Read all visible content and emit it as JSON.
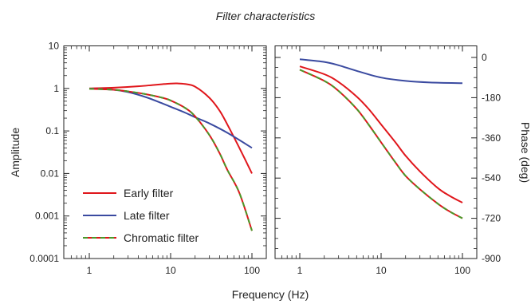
{
  "colors": {
    "early": "#e0161b",
    "late": "#3a4aa0",
    "chromatic_base": "#e0161b",
    "chromatic_dash": "#4a9a2a"
  },
  "chart_data": {
    "title": "Filter characteristics",
    "xlabel": "Frequency (Hz)",
    "panels": [
      {
        "id": "amplitude",
        "type": "line",
        "ylabel": "Amplitude",
        "xscale": "log",
        "yscale": "log",
        "xlim": [
          1,
          100
        ],
        "ylim": [
          0.0001,
          10
        ],
        "xticks": [
          "1",
          "10",
          "100"
        ],
        "yticks": [
          "0.0001",
          "0.001",
          "0.01",
          "0.1",
          "1",
          "10"
        ],
        "legend": "bottom-left",
        "series": [
          {
            "name": "Early filter",
            "color": "early",
            "x": [
              1,
              2,
              4,
              6,
              8,
              10,
              12,
              15,
              20,
              30,
              40,
              50,
              70,
              100
            ],
            "y": [
              1.0,
              1.04,
              1.12,
              1.2,
              1.26,
              1.3,
              1.31,
              1.27,
              1.1,
              0.6,
              0.3,
              0.14,
              0.04,
              0.01
            ]
          },
          {
            "name": "Late filter",
            "color": "late",
            "x": [
              1,
              2,
              3,
              5,
              8,
              10,
              15,
              20,
              30,
              50,
              100
            ],
            "y": [
              0.99,
              0.93,
              0.82,
              0.62,
              0.44,
              0.37,
              0.27,
              0.21,
              0.15,
              0.09,
              0.04
            ]
          },
          {
            "name": "Chromatic filter",
            "color": "chromatic",
            "x": [
              1,
              2,
              3,
              5,
              8,
              10,
              15,
              20,
              30,
              40,
              50,
              70,
              100
            ],
            "y": [
              0.98,
              0.93,
              0.85,
              0.73,
              0.6,
              0.52,
              0.35,
              0.22,
              0.08,
              0.03,
              0.012,
              0.0035,
              0.00045
            ]
          }
        ]
      },
      {
        "id": "phase",
        "type": "line",
        "ylabel": "Phase (deg)",
        "xscale": "log",
        "yscale": "linear",
        "xlim": [
          1,
          100
        ],
        "ylim": [
          -900,
          0
        ],
        "xticks": [
          "1",
          "10",
          "100"
        ],
        "yticks": [
          "0",
          "-180",
          "-360",
          "-540",
          "-720",
          "-900"
        ],
        "series": [
          {
            "name": "Late filter",
            "color": "late",
            "x": [
              1,
              2,
              3,
              5,
              10,
              20,
              40,
              100
            ],
            "y": [
              -8,
              -20,
              -35,
              -60,
              -90,
              -105,
              -112,
              -115
            ]
          },
          {
            "name": "Early filter",
            "color": "early",
            "x": [
              1,
              2,
              3,
              5,
              7,
              10,
              15,
              20,
              30,
              50,
              70,
              100
            ],
            "y": [
              -40,
              -75,
              -110,
              -175,
              -230,
              -300,
              -380,
              -440,
              -510,
              -585,
              -620,
              -650
            ]
          },
          {
            "name": "Chromatic filter",
            "color": "chromatic",
            "x": [
              1,
              2,
              3,
              5,
              7,
              10,
              15,
              20,
              30,
              50,
              70,
              100
            ],
            "y": [
              -55,
              -105,
              -150,
              -230,
              -300,
              -380,
              -470,
              -530,
              -590,
              -655,
              -690,
              -720
            ]
          }
        ]
      }
    ]
  }
}
